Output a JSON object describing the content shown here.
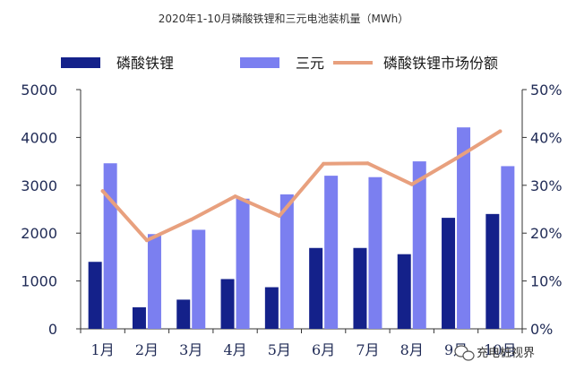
{
  "chart_data": {
    "type": "bar",
    "title": "2020年1-10月磷酸铁锂和三元电池装机量（MWh）",
    "categories": [
      "1月",
      "2月",
      "3月",
      "4月",
      "5月",
      "6月",
      "7月",
      "8月",
      "9月",
      "10月"
    ],
    "series": [
      {
        "name": "磷酸铁锂",
        "type": "bar",
        "axis": "left",
        "color": "#14218a",
        "values": [
          1400,
          450,
          610,
          1040,
          870,
          1690,
          1690,
          1560,
          2320,
          2400
        ]
      },
      {
        "name": "三元",
        "type": "bar",
        "axis": "left",
        "color": "#7b7ff0",
        "values": [
          3460,
          1980,
          2070,
          2720,
          2810,
          3200,
          3170,
          3500,
          4210,
          3400
        ]
      },
      {
        "name": "磷酸铁锂市场份额",
        "type": "line",
        "axis": "right",
        "color": "#e8a07e",
        "values": [
          28.8,
          18.5,
          22.8,
          27.7,
          23.6,
          34.5,
          34.6,
          30.2,
          35.6,
          41.3
        ]
      }
    ],
    "y_left": {
      "min": 0,
      "max": 5000,
      "ticks": [
        "0",
        "1000",
        "2000",
        "3000",
        "4000",
        "5000"
      ]
    },
    "y_right": {
      "min": 0,
      "max": 50,
      "ticks": [
        "0%",
        "10%",
        "20%",
        "30%",
        "40%",
        "50%"
      ]
    },
    "grid": false,
    "legend_position": "top"
  },
  "watermark": {
    "text": "充电桩视界"
  }
}
